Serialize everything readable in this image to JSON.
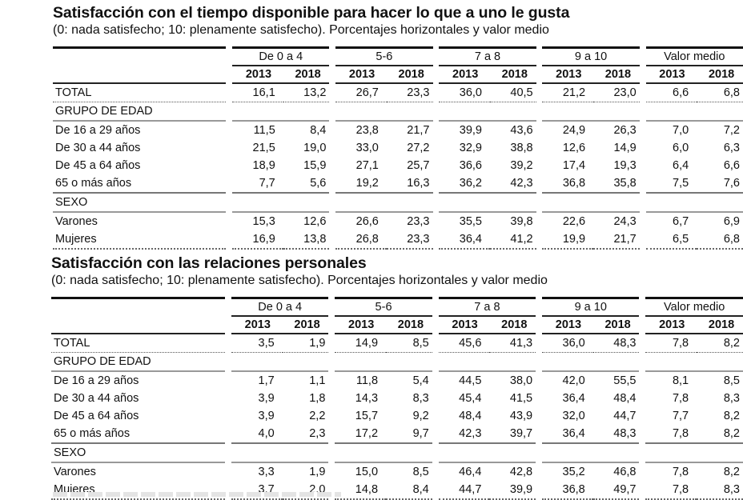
{
  "columns": {
    "groups": [
      "De 0 a 4",
      "5-6",
      "7 a 8",
      "9 a 10",
      "Valor medio"
    ],
    "years": [
      "2013",
      "2018"
    ]
  },
  "tables": [
    {
      "title": "Satisfacción con el tiempo disponible para hacer lo que a uno le gusta",
      "subtitle": "(0: nada satisfecho; 10: plenamente satisfecho). Porcentajes horizontales y valor medio",
      "rows": [
        {
          "label": "TOTAL",
          "values": [
            "16,1",
            "13,2",
            "26,7",
            "23,3",
            "36,0",
            "40,5",
            "21,2",
            "23,0",
            "6,6",
            "6,8"
          ]
        },
        {
          "label": "GRUPO DE EDAD",
          "values": []
        },
        {
          "label": "De 16 a 29 años",
          "values": [
            "11,5",
            "8,4",
            "23,8",
            "21,7",
            "39,9",
            "43,6",
            "24,9",
            "26,3",
            "7,0",
            "7,2"
          ]
        },
        {
          "label": "De 30 a 44 años",
          "values": [
            "21,5",
            "19,0",
            "33,0",
            "27,2",
            "32,9",
            "38,8",
            "12,6",
            "14,9",
            "6,0",
            "6,3"
          ]
        },
        {
          "label": "De 45 a 64 años",
          "values": [
            "18,9",
            "15,9",
            "27,1",
            "25,7",
            "36,6",
            "39,2",
            "17,4",
            "19,3",
            "6,4",
            "6,6"
          ]
        },
        {
          "label": "65 o más años",
          "values": [
            "7,7",
            "5,6",
            "19,2",
            "16,3",
            "36,2",
            "42,3",
            "36,8",
            "35,8",
            "7,5",
            "7,6"
          ]
        },
        {
          "label": "SEXO",
          "values": []
        },
        {
          "label": "Varones",
          "values": [
            "15,3",
            "12,6",
            "26,6",
            "23,3",
            "35,5",
            "39,8",
            "22,6",
            "24,3",
            "6,7",
            "6,9"
          ]
        },
        {
          "label": "Mujeres",
          "values": [
            "16,9",
            "13,8",
            "26,8",
            "23,3",
            "36,4",
            "41,2",
            "19,9",
            "21,7",
            "6,5",
            "6,8"
          ]
        }
      ]
    },
    {
      "title": "Satisfacción con las relaciones personales",
      "subtitle": "(0: nada satisfecho; 10: plenamente satisfecho). Porcentajes horizontales y valor medio",
      "rows": [
        {
          "label": "TOTAL",
          "values": [
            "3,5",
            "1,9",
            "14,9",
            "8,5",
            "45,6",
            "41,3",
            "36,0",
            "48,3",
            "7,8",
            "8,2"
          ]
        },
        {
          "label": "GRUPO DE EDAD",
          "values": []
        },
        {
          "label": "De 16 a 29 años",
          "values": [
            "1,7",
            "1,1",
            "11,8",
            "5,4",
            "44,5",
            "38,0",
            "42,0",
            "55,5",
            "8,1",
            "8,5"
          ]
        },
        {
          "label": "De 30 a 44 años",
          "values": [
            "3,9",
            "1,8",
            "14,3",
            "8,3",
            "45,4",
            "41,5",
            "36,4",
            "48,4",
            "7,8",
            "8,3"
          ]
        },
        {
          "label": "De 45 a 64 años",
          "values": [
            "3,9",
            "2,2",
            "15,7",
            "9,2",
            "48,4",
            "43,9",
            "32,0",
            "44,7",
            "7,7",
            "8,2"
          ]
        },
        {
          "label": "65 o más años",
          "values": [
            "4,0",
            "2,3",
            "17,2",
            "9,7",
            "42,3",
            "39,7",
            "36,4",
            "48,3",
            "7,8",
            "8,2"
          ]
        },
        {
          "label": "SEXO",
          "values": []
        },
        {
          "label": "Varones",
          "values": [
            "3,3",
            "1,9",
            "15,0",
            "8,5",
            "46,4",
            "42,8",
            "35,2",
            "46,8",
            "7,8",
            "8,2"
          ]
        },
        {
          "label": "Mujeres",
          "values": [
            "3,7",
            "2,0",
            "14,8",
            "8,4",
            "44,7",
            "39,9",
            "36,8",
            "49,7",
            "7,8",
            "8,3"
          ]
        }
      ]
    }
  ]
}
